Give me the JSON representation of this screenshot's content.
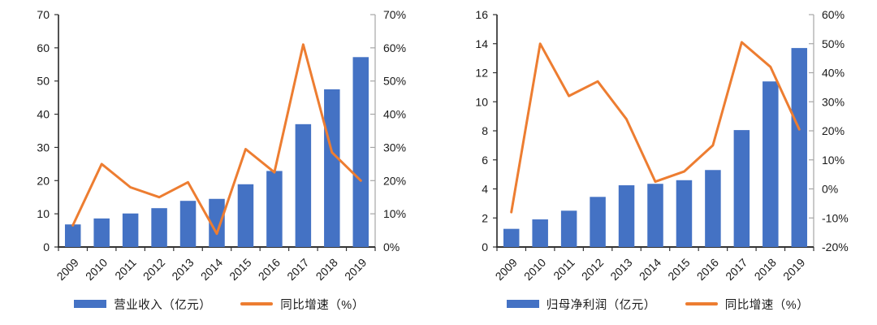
{
  "figure": {
    "background": "#ffffff",
    "axis_color": "#333333",
    "secondary_axis_color": "#a6a6a6",
    "label_color": "#1a1a1a"
  },
  "chart_data": [
    {
      "name": "operating-revenue-and-growth",
      "type": "bar+line",
      "title": "",
      "categories": [
        "2009",
        "2010",
        "2011",
        "2012",
        "2013",
        "2014",
        "2015",
        "2016",
        "2017",
        "2018",
        "2019"
      ],
      "series": [
        {
          "name": "营业收入（亿元）",
          "chart": "bar",
          "axis": "left",
          "color": "#4472C4",
          "values": [
            6.8,
            8.6,
            10.1,
            11.7,
            13.9,
            14.5,
            18.9,
            22.9,
            37.0,
            47.5,
            57.2
          ]
        },
        {
          "name": "同比增速（%）",
          "chart": "line",
          "axis": "right",
          "color": "#ED7D31",
          "values": [
            6.5,
            25,
            18,
            15,
            19.5,
            4,
            29.5,
            22.5,
            61,
            28.5,
            20
          ]
        }
      ],
      "left_axis": {
        "min": 0,
        "max": 70,
        "step": 10,
        "tick_labels": [
          "0",
          "10",
          "20",
          "30",
          "40",
          "50",
          "60",
          "70"
        ]
      },
      "right_axis": {
        "min": 0,
        "max": 70,
        "step": 10,
        "tick_labels": [
          "0%",
          "10%",
          "20%",
          "30%",
          "40%",
          "50%",
          "60%",
          "70%"
        ]
      },
      "grid": false,
      "legend_position": "bottom"
    },
    {
      "name": "net-profit-and-growth",
      "type": "bar+line",
      "title": "",
      "categories": [
        "2009",
        "2010",
        "2011",
        "2012",
        "2013",
        "2014",
        "2015",
        "2016",
        "2017",
        "2018",
        "2019"
      ],
      "series": [
        {
          "name": "归母净利润（亿元）",
          "chart": "bar",
          "axis": "left",
          "color": "#4472C4",
          "values": [
            1.25,
            1.9,
            2.5,
            3.45,
            4.25,
            4.35,
            4.6,
            5.3,
            8.05,
            11.4,
            13.7
          ]
        },
        {
          "name": "同比增速（%）",
          "chart": "line",
          "axis": "right",
          "color": "#ED7D31",
          "values": [
            -8,
            50,
            32,
            37,
            24,
            2.5,
            6,
            15,
            50.5,
            42,
            20.5
          ]
        }
      ],
      "left_axis": {
        "min": 0,
        "max": 16,
        "step": 2,
        "tick_labels": [
          "0",
          "2",
          "4",
          "6",
          "8",
          "10",
          "12",
          "14",
          "16"
        ]
      },
      "right_axis": {
        "min": -20,
        "max": 60,
        "step": 10,
        "tick_labels": [
          "-20%",
          "-10%",
          "0%",
          "10%",
          "20%",
          "30%",
          "40%",
          "50%",
          "60%"
        ]
      },
      "grid": false,
      "legend_position": "bottom"
    }
  ]
}
